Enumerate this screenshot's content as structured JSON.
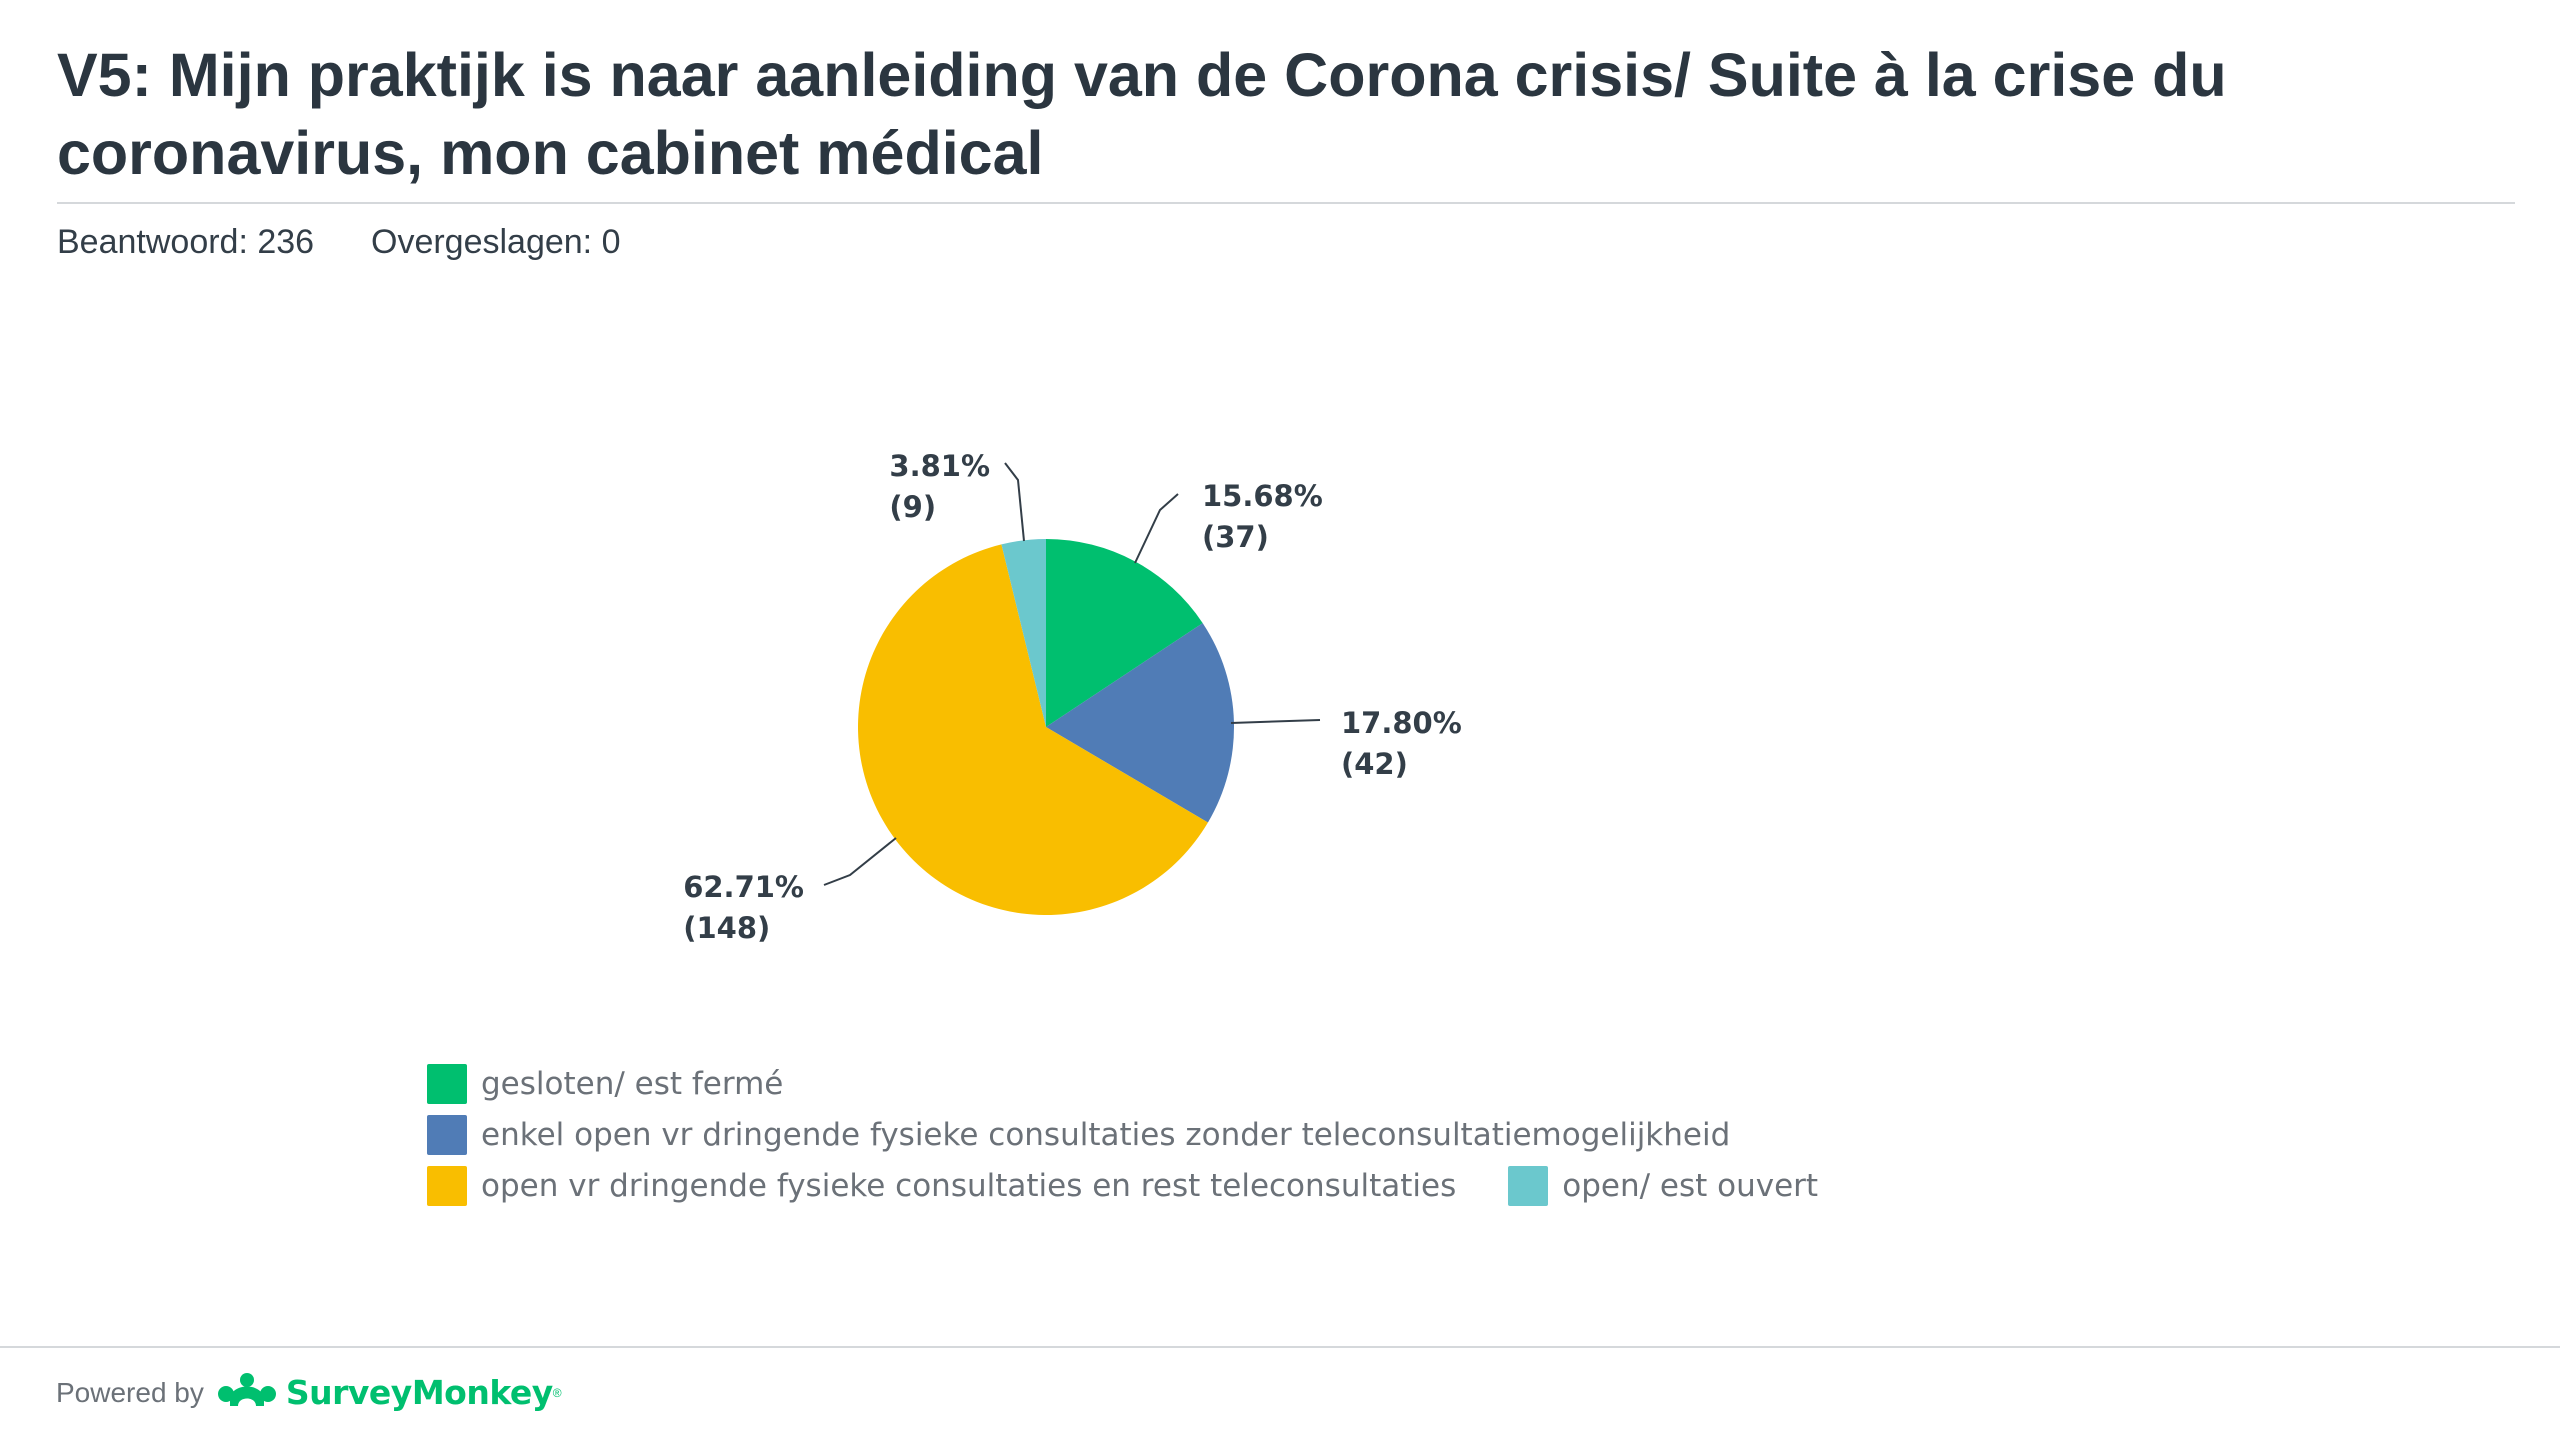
{
  "title": "V5: Mijn praktijk is naar aanleiding van de Corona crisis/ Suite à la crise du coronavirus, mon cabinet médical",
  "stats": {
    "answered_label": "Beantwoord:",
    "answered_value": "236",
    "skipped_label": "Overgeslagen:",
    "skipped_value": "0"
  },
  "chart_data": {
    "type": "pie",
    "total": 236,
    "start_angle_deg": 0,
    "direction": "clockwise",
    "slices": [
      {
        "name": "gesloten/ est fermé",
        "percent": 15.68,
        "count": 37,
        "color": "#00bf6f",
        "percent_label": "15.68%",
        "count_label": "(37)"
      },
      {
        "name": "enkel open vr dringende fysieke consultaties zonder teleconsultatiemogelijkheid",
        "percent": 17.8,
        "count": 42,
        "color": "#507cb6",
        "percent_label": "17.80%",
        "count_label": "(42)"
      },
      {
        "name": "open vr dringende fysieke consultaties en rest teleconsultaties",
        "percent": 62.71,
        "count": 148,
        "color": "#f9be00",
        "percent_label": "62.71%",
        "count_label": "(148)"
      },
      {
        "name": "open/ est ouvert",
        "percent": 3.81,
        "count": 9,
        "color": "#6bc8cd",
        "percent_label": "3.81%",
        "count_label": "(9)"
      }
    ],
    "legend_position": "bottom"
  },
  "legend": {
    "rows": [
      [
        {
          "label": "gesloten/ est fermé",
          "color": "#00bf6f"
        }
      ],
      [
        {
          "label": "enkel open vr dringende fysieke consultaties zonder teleconsultatiemogelijkheid",
          "color": "#507cb6"
        }
      ],
      [
        {
          "label": "open vr dringende fysieke consultaties en rest teleconsultaties",
          "color": "#f9be00"
        },
        {
          "label": "open/ est ouvert",
          "color": "#6bc8cd"
        }
      ]
    ]
  },
  "footer": {
    "powered_by": "Powered by",
    "brand": "SurveyMonkey",
    "brand_icon": "surveymonkey-logo-icon",
    "brand_color": "#00bf6f"
  }
}
